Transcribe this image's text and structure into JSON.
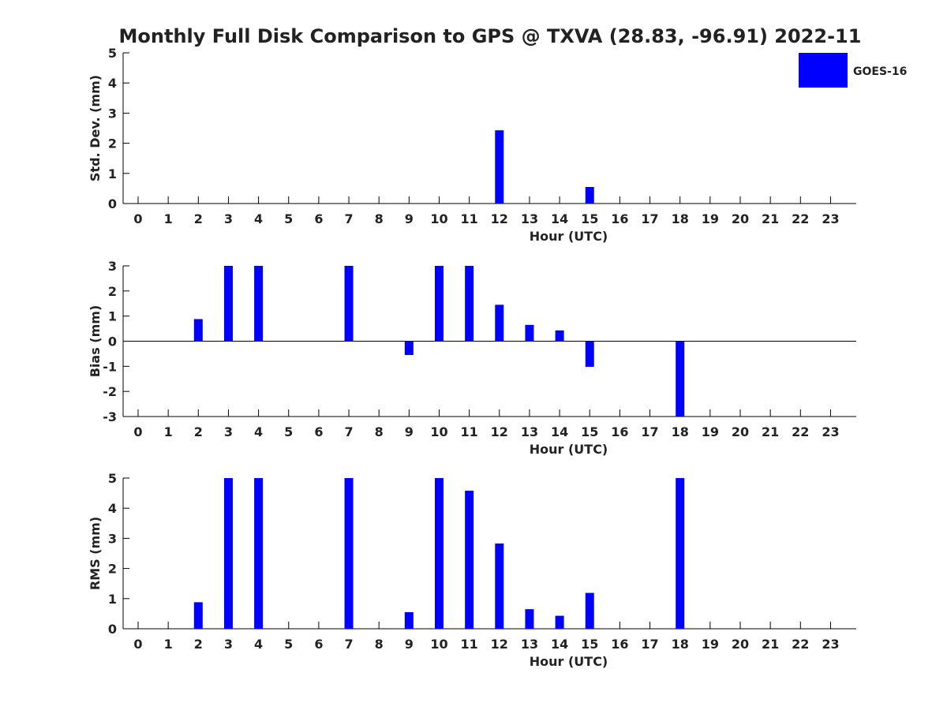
{
  "chart_title": "Monthly Full Disk Comparison to GPS @ TXVA (28.83, -96.91) 2022-11",
  "legend": {
    "label": "GOES-16",
    "color": "#0000ff",
    "placement": "top-right"
  },
  "colors": {
    "bar": "#0000ff",
    "axis": "#000000",
    "text": "#222222",
    "background": "#ffffff"
  },
  "chart_data": [
    {
      "type": "bar",
      "title": "",
      "xlabel": "Hour (UTC)",
      "ylabel": "Std. Dev. (mm)",
      "categories": [
        "0",
        "1",
        "2",
        "3",
        "4",
        "5",
        "6",
        "7",
        "8",
        "9",
        "10",
        "11",
        "12",
        "13",
        "14",
        "15",
        "16",
        "17",
        "18",
        "19",
        "20",
        "21",
        "22",
        "23"
      ],
      "series": [
        {
          "name": "GOES-16",
          "values": [
            null,
            null,
            null,
            null,
            null,
            null,
            null,
            null,
            null,
            null,
            null,
            null,
            2.43,
            null,
            null,
            0.55,
            null,
            null,
            null,
            null,
            null,
            null,
            null,
            null
          ]
        }
      ],
      "ylim": [
        0,
        5
      ],
      "yticks": [
        "0",
        "1",
        "2",
        "3",
        "4",
        "5"
      ],
      "zero_line": false,
      "grid": false
    },
    {
      "type": "bar",
      "title": "",
      "xlabel": "Hour (UTC)",
      "ylabel": "Bias (mm)",
      "categories": [
        "0",
        "1",
        "2",
        "3",
        "4",
        "5",
        "6",
        "7",
        "8",
        "9",
        "10",
        "11",
        "12",
        "13",
        "14",
        "15",
        "16",
        "17",
        "18",
        "19",
        "20",
        "21",
        "22",
        "23"
      ],
      "series": [
        {
          "name": "GOES-16",
          "values": [
            null,
            null,
            0.88,
            3.0,
            3.0,
            null,
            null,
            3.0,
            null,
            -0.55,
            3.0,
            3.0,
            1.45,
            0.65,
            0.43,
            -1.02,
            null,
            null,
            -3.0,
            null,
            null,
            null,
            null,
            null
          ]
        }
      ],
      "ylim": [
        -3,
        3
      ],
      "yticks": [
        "-3",
        "-2",
        "-1",
        "0",
        "1",
        "2",
        "3"
      ],
      "zero_line": true,
      "grid": false
    },
    {
      "type": "bar",
      "title": "",
      "xlabel": "Hour (UTC)",
      "ylabel": "RMS (mm)",
      "categories": [
        "0",
        "1",
        "2",
        "3",
        "4",
        "5",
        "6",
        "7",
        "8",
        "9",
        "10",
        "11",
        "12",
        "13",
        "14",
        "15",
        "16",
        "17",
        "18",
        "19",
        "20",
        "21",
        "22",
        "23"
      ],
      "series": [
        {
          "name": "GOES-16",
          "values": [
            null,
            null,
            0.88,
            5.0,
            5.0,
            null,
            null,
            5.0,
            null,
            0.55,
            5.0,
            4.58,
            2.83,
            0.65,
            0.43,
            1.19,
            null,
            null,
            5.0,
            null,
            null,
            null,
            null,
            null
          ]
        }
      ],
      "ylim": [
        0,
        5
      ],
      "yticks": [
        "0",
        "1",
        "2",
        "3",
        "4",
        "5"
      ],
      "zero_line": false,
      "grid": false
    }
  ]
}
